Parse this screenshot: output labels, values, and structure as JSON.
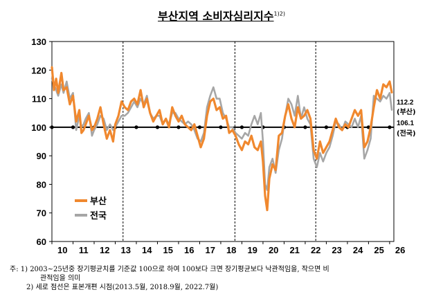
{
  "title": "부산지역 소비자심리지수",
  "title_superscript": "1)2)",
  "colors": {
    "busan": "#f0882e",
    "national": "#a6a6a6",
    "baseline": "#000000"
  },
  "notes": [
    "주: 1) 2003~25년중 장기평균치를 기준값 100으로 하여 100보다 크면 장기평균보다 낙관적임을, 작으면 비",
    "관적임을 의미",
    "2) 세로 점선은 표본개편 시점(2013.5월, 2018.9월, 2022.7월)"
  ],
  "chart_data": {
    "type": "line",
    "title": "부산지역 소비자심리지수",
    "x_tick_labels": [
      "10",
      "11",
      "12",
      "13",
      "14",
      "15",
      "16",
      "17",
      "18",
      "19",
      "20",
      "21",
      "22",
      "23",
      "24",
      "25",
      "26"
    ],
    "xlim": [
      2010.0,
      2026.2
    ],
    "ylim": [
      60,
      130
    ],
    "y_ticks": [
      60,
      70,
      80,
      90,
      100,
      110,
      120,
      130
    ],
    "baseline": 100,
    "vertical_dashed_lines": [
      2013.37,
      2018.67,
      2022.5
    ],
    "legend": {
      "position": "bottom-left",
      "entries": [
        "부산",
        "전국"
      ]
    },
    "end_labels": [
      {
        "series": "부산",
        "value_text": "112.2",
        "name_text": "(부산)",
        "value": 112.2
      },
      {
        "series": "전국",
        "value_text": "106.1",
        "name_text": "(전국)",
        "value": 106.1
      }
    ],
    "series": [
      {
        "name": "부산",
        "x": [
          2010.0,
          2010.1,
          2010.2,
          2010.3,
          2010.45,
          2010.55,
          2010.7,
          2010.85,
          2011.0,
          2011.15,
          2011.3,
          2011.4,
          2011.5,
          2011.6,
          2011.75,
          2011.9,
          2012.0,
          2012.15,
          2012.3,
          2012.45,
          2012.6,
          2012.75,
          2012.9,
          2013.0,
          2013.15,
          2013.3,
          2013.45,
          2013.6,
          2013.75,
          2013.9,
          2014.05,
          2014.2,
          2014.35,
          2014.5,
          2014.65,
          2014.8,
          2014.95,
          2015.1,
          2015.25,
          2015.4,
          2015.55,
          2015.7,
          2015.85,
          2016.0,
          2016.15,
          2016.3,
          2016.45,
          2016.6,
          2016.75,
          2016.9,
          2017.05,
          2017.2,
          2017.35,
          2017.5,
          2017.65,
          2017.8,
          2017.95,
          2018.1,
          2018.25,
          2018.4,
          2018.55,
          2018.7,
          2018.85,
          2019.0,
          2019.15,
          2019.3,
          2019.45,
          2019.6,
          2019.75,
          2019.9,
          2020.0,
          2020.1,
          2020.2,
          2020.3,
          2020.45,
          2020.6,
          2020.75,
          2020.9,
          2021.05,
          2021.2,
          2021.35,
          2021.5,
          2021.65,
          2021.8,
          2021.95,
          2022.1,
          2022.25,
          2022.4,
          2022.55,
          2022.7,
          2022.85,
          2023.0,
          2023.15,
          2023.3,
          2023.45,
          2023.6,
          2023.75,
          2023.9,
          2024.05,
          2024.2,
          2024.35,
          2024.5,
          2024.65,
          2024.8,
          2024.95,
          2025.1,
          2025.25,
          2025.4,
          2025.55,
          2025.7,
          2025.85,
          2026.0,
          2026.1
        ],
        "values": [
          121,
          113,
          117,
          112,
          119,
          113,
          114,
          108,
          111,
          102,
          106,
          98,
          99,
          101,
          104,
          99,
          100,
          103,
          107,
          101,
          96,
          99,
          95,
          101,
          104,
          109,
          107,
          106,
          109,
          110,
          108,
          113,
          107,
          110,
          105,
          102,
          104,
          106,
          101,
          103,
          100,
          107,
          104,
          102,
          104,
          101,
          100,
          99,
          101,
          97,
          93,
          96,
          104,
          109,
          110,
          106,
          107,
          103,
          104,
          98,
          99,
          97,
          94,
          92,
          95,
          94,
          97,
          93,
          92,
          95,
          88,
          76,
          71,
          82,
          87,
          85,
          97,
          98,
          104,
          108,
          103,
          100,
          107,
          103,
          104,
          106,
          103,
          92,
          89,
          95,
          91,
          93,
          95,
          99,
          103,
          100,
          99,
          101,
          100,
          103,
          106,
          104,
          106,
          93,
          95,
          100,
          107,
          113,
          110,
          115,
          114,
          116,
          112.2
        ]
      },
      {
        "name": "전국",
        "x": [
          2010.0,
          2010.1,
          2010.2,
          2010.3,
          2010.45,
          2010.55,
          2010.7,
          2010.85,
          2011.0,
          2011.15,
          2011.3,
          2011.4,
          2011.5,
          2011.6,
          2011.75,
          2011.9,
          2012.0,
          2012.15,
          2012.3,
          2012.45,
          2012.6,
          2012.75,
          2012.9,
          2013.0,
          2013.15,
          2013.3,
          2013.45,
          2013.6,
          2013.75,
          2013.9,
          2014.05,
          2014.2,
          2014.35,
          2014.5,
          2014.65,
          2014.8,
          2014.95,
          2015.1,
          2015.25,
          2015.4,
          2015.55,
          2015.7,
          2015.85,
          2016.0,
          2016.15,
          2016.3,
          2016.45,
          2016.6,
          2016.75,
          2016.9,
          2017.05,
          2017.2,
          2017.35,
          2017.5,
          2017.65,
          2017.8,
          2017.95,
          2018.1,
          2018.25,
          2018.4,
          2018.55,
          2018.7,
          2018.85,
          2019.0,
          2019.15,
          2019.3,
          2019.45,
          2019.6,
          2019.75,
          2019.9,
          2020.0,
          2020.1,
          2020.2,
          2020.3,
          2020.45,
          2020.6,
          2020.75,
          2020.9,
          2021.05,
          2021.2,
          2021.35,
          2021.5,
          2021.65,
          2021.8,
          2021.95,
          2022.1,
          2022.25,
          2022.4,
          2022.55,
          2022.7,
          2022.85,
          2023.0,
          2023.15,
          2023.3,
          2023.45,
          2023.6,
          2023.75,
          2023.9,
          2024.05,
          2024.2,
          2024.35,
          2024.5,
          2024.65,
          2024.8,
          2024.95,
          2025.1,
          2025.25,
          2025.4,
          2025.55,
          2025.7,
          2025.85,
          2026.0,
          2026.1
        ],
        "values": [
          117,
          115,
          113,
          111,
          115,
          112,
          116,
          110,
          112,
          99,
          104,
          100,
          101,
          103,
          105,
          97,
          99,
          101,
          104,
          103,
          99,
          101,
          99,
          100,
          102,
          104,
          104,
          105,
          107,
          109,
          107,
          110,
          108,
          111,
          105,
          103,
          104,
          104,
          101,
          103,
          101,
          105,
          105,
          103,
          102,
          101,
          102,
          101,
          99,
          96,
          95,
          98,
          107,
          111,
          114,
          110,
          110,
          105,
          103,
          100,
          100,
          98,
          97,
          96,
          98,
          97,
          101,
          104,
          101,
          105,
          95,
          80,
          78,
          86,
          89,
          84,
          92,
          96,
          104,
          110,
          108,
          104,
          111,
          103,
          107,
          103,
          101,
          89,
          86,
          91,
          88,
          91,
          93,
          97,
          102,
          101,
          99,
          102,
          101,
          100,
          103,
          100,
          104,
          89,
          92,
          96,
          111,
          110,
          109,
          111,
          110,
          112,
          106.1
        ]
      }
    ]
  }
}
